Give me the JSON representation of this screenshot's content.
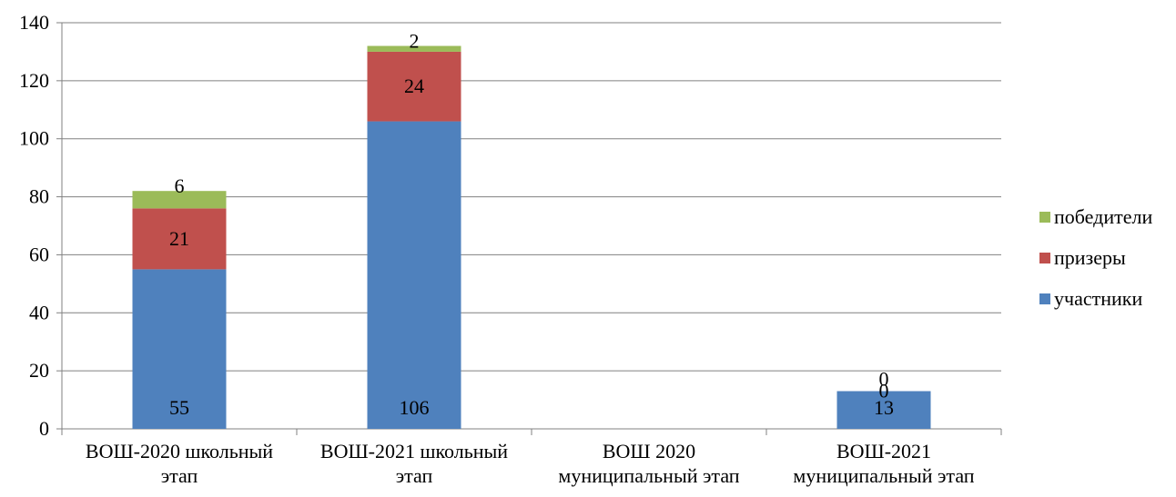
{
  "chart_data": {
    "type": "bar",
    "stacked": true,
    "categories": [
      [
        "ВОШ-2020 школьный",
        "этап"
      ],
      [
        "ВОШ-2021 школьный",
        "этап"
      ],
      [
        "ВОШ 2020",
        "муниципальный этап"
      ],
      [
        "ВОШ-2021",
        "муниципальный этап"
      ]
    ],
    "series": [
      {
        "name": "участники",
        "color": "#4F81BD",
        "values": [
          55,
          106,
          null,
          13
        ],
        "labels": [
          "55",
          "106",
          "",
          "13"
        ]
      },
      {
        "name": "призеры",
        "color": "#C0504D",
        "values": [
          21,
          24,
          null,
          0
        ],
        "labels": [
          "21",
          "24",
          "",
          "0"
        ]
      },
      {
        "name": "победители",
        "color": "#9BBB59",
        "values": [
          6,
          2,
          null,
          0
        ],
        "labels": [
          "6",
          "2",
          "",
          "0"
        ]
      }
    ],
    "ylim": [
      0,
      140
    ],
    "yticks": [
      0,
      20,
      40,
      60,
      80,
      100,
      120,
      140
    ],
    "grid": true,
    "legend_position": "right",
    "legend_order": [
      "победители",
      "призеры",
      "участники"
    ]
  }
}
